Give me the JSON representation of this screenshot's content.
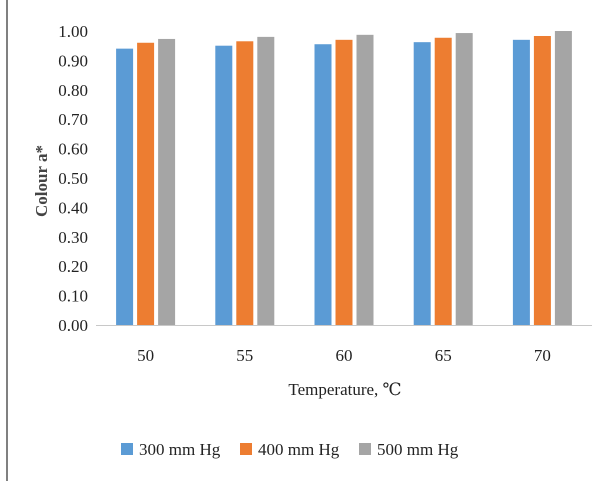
{
  "chart_data": {
    "type": "bar",
    "title": "",
    "xlabel": "Temperature, ℃",
    "ylabel": "Colour a*",
    "categories": [
      "50",
      "55",
      "60",
      "65",
      "70"
    ],
    "series": [
      {
        "name": "300 mm Hg",
        "color": "#5b9bd5",
        "values": [
          0.94,
          0.95,
          0.955,
          0.962,
          0.97
        ]
      },
      {
        "name": "400 mm Hg",
        "color": "#ed7d31",
        "values": [
          0.96,
          0.965,
          0.97,
          0.977,
          0.983
        ]
      },
      {
        "name": "500 mm Hg",
        "color": "#a5a5a5",
        "values": [
          0.973,
          0.98,
          0.987,
          0.993,
          1.0
        ]
      }
    ],
    "ylim": [
      0,
      1.0
    ],
    "yticks": [
      "0.00",
      "0.10",
      "0.20",
      "0.30",
      "0.40",
      "0.50",
      "0.60",
      "0.70",
      "0.80",
      "0.90",
      "1.00"
    ],
    "grid": false,
    "legend_position": "bottom"
  }
}
